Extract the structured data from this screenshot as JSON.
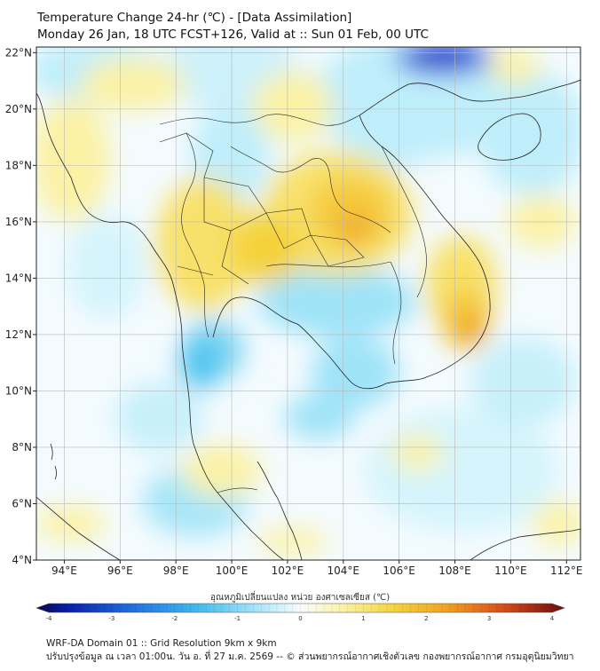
{
  "title": {
    "line1": "Temperature Change 24-hr (℃) - [Data Assimilation]",
    "line2": "Monday 26 Jan, 18 UTC FCST+126, Valid at :: Sun 01 Feb, 00 UTC"
  },
  "map": {
    "lon_range": [
      93,
      112.5
    ],
    "lat_range": [
      4,
      22.2
    ],
    "lon_ticks": [
      "94°E",
      "96°E",
      "98°E",
      "100°E",
      "102°E",
      "104°E",
      "106°E",
      "108°E",
      "110°E",
      "112°E"
    ],
    "lon_tick_values": [
      94,
      96,
      98,
      100,
      102,
      104,
      106,
      108,
      110,
      112
    ],
    "lat_ticks": [
      "4°N",
      "6°N",
      "8°N",
      "10°N",
      "12°N",
      "14°N",
      "16°N",
      "18°N",
      "20°N",
      "22°N"
    ],
    "lat_tick_values": [
      4,
      6,
      8,
      10,
      12,
      14,
      16,
      18,
      20,
      22
    ],
    "grid": true,
    "field": "temperature change 24-hr",
    "colors": {
      "cold_max": "#1a2fc4",
      "cold": "#3fb8ec",
      "cool": "#bfeefb",
      "neutral": "#f4fbff",
      "warm_light": "#fbf2a6",
      "warm": "#f5d23a",
      "hot": "#f0a020"
    }
  },
  "colorbar": {
    "title": "อุณหภูมิเปลี่ยนแปลง หน่วย องศาเซลเซียส (℃)",
    "min": -4,
    "max": 4,
    "ticks": [
      "-4",
      "-3",
      "-2",
      "-1",
      "0",
      "1",
      "2",
      "3",
      "4"
    ],
    "tick_values": [
      -4,
      -3,
      -2,
      -1,
      0,
      1,
      2,
      3,
      4
    ],
    "extend": "both"
  },
  "footer": {
    "line1": "WRF-DA Domain 01 :: Grid Resolution 9km x 9km",
    "line2": "ปรับปรุงข้อมูล ณ เวลา 01:00น. วัน อ. ที่ 27 ม.ค. 2569 -- © ส่วนพยากรณ์อากาศเชิงตัวเลข กองพยากรณ์อากาศ กรมอุตุนิยมวิทยา"
  }
}
